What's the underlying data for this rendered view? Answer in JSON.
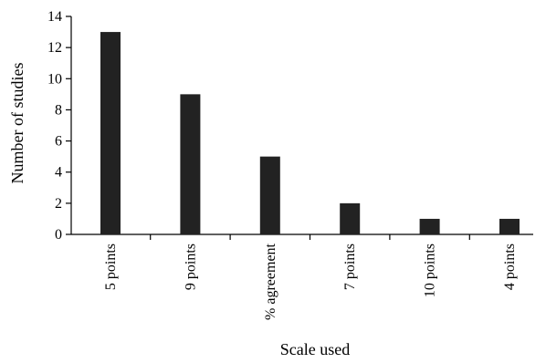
{
  "chart_data": {
    "type": "bar",
    "categories": [
      "5 points",
      "9 points",
      "% agreement",
      "7 points",
      "10 points",
      "4 points"
    ],
    "values": [
      13,
      9,
      5,
      2,
      1,
      1
    ],
    "title": "",
    "xlabel": "Scale used",
    "ylabel": "Number of studies",
    "ylim": [
      0,
      14
    ],
    "yticks": [
      0,
      2,
      4,
      6,
      8,
      10,
      12,
      14
    ],
    "grid": false,
    "legend": "none",
    "bar_color": "#222222"
  }
}
